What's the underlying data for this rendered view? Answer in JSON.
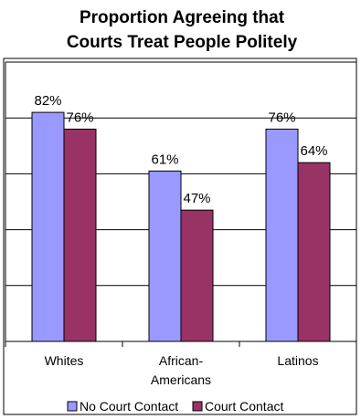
{
  "chart_data": {
    "type": "bar",
    "title_lines": [
      "Proportion Agreeing that",
      "Courts Treat People Politely"
    ],
    "categories": [
      {
        "lines": [
          "Whites"
        ]
      },
      {
        "lines": [
          "African-",
          "Americans"
        ]
      },
      {
        "lines": [
          "Latinos"
        ]
      }
    ],
    "series": [
      {
        "name": "No Court Contact",
        "color": "#9999ff",
        "values": [
          82,
          61,
          76
        ],
        "labels": [
          "82%",
          "61%",
          "76%"
        ]
      },
      {
        "name": "Court Contact",
        "color": "#993366",
        "values": [
          76,
          47,
          64
        ],
        "labels": [
          "76%",
          "47%",
          "64%"
        ]
      }
    ],
    "ylim": [
      0,
      100
    ],
    "gridlines": true,
    "legend_position": "bottom"
  }
}
